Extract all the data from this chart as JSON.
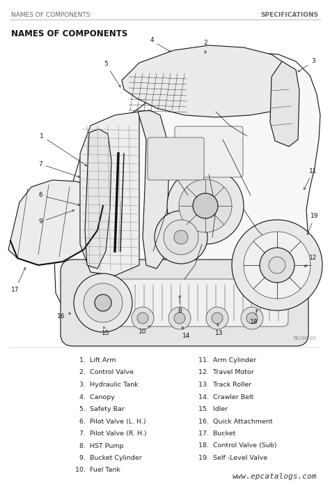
{
  "page_bg": "#ffffff",
  "header_left": "NAMES OF COMPONENTS",
  "header_right": "SPECIFICATIONS",
  "header_fontsize": 6.5,
  "header_color": "#666666",
  "section_title": "NAMES OF COMPONENTS",
  "section_title_fontsize": 8.5,
  "divider_color": "#aaaaaa",
  "parts_left": [
    "  1.  Lift Arm",
    "  2.  Control Valve",
    "  3.  Hydraulic Tank",
    "  4.  Canopy",
    "  5.  Safety Bar",
    "  6.  Pilot Valve (L. H.)",
    "  7.  Pilot Valve (R. H.)",
    "  8.  HST Pump",
    "  9.  Bucket Cylinder",
    "10.  Fuel Tank"
  ],
  "parts_right": [
    "11.  Arm Cylinder",
    "12.  Travel Motor",
    "13.  Track Roller",
    "14.  Crawler Belt",
    "15.  Idler",
    "16.  Quick Attachment",
    "17.  Bucket",
    "18.  Control Valve (Sub)",
    "19.  Self -Level Valve"
  ],
  "parts_fontsize": 6.8,
  "parts_color": "#222222",
  "watermark": "www.epcatalogs.com",
  "watermark_fontsize": 8,
  "watermark_color": "#333333",
  "fig_ref": "TB190-01",
  "ec": "#111111",
  "lw_main": 0.8,
  "lw_thin": 0.4,
  "fill_light": "#f0f0f0",
  "fill_mid": "#e0e0e0",
  "fill_dark": "#cccccc"
}
